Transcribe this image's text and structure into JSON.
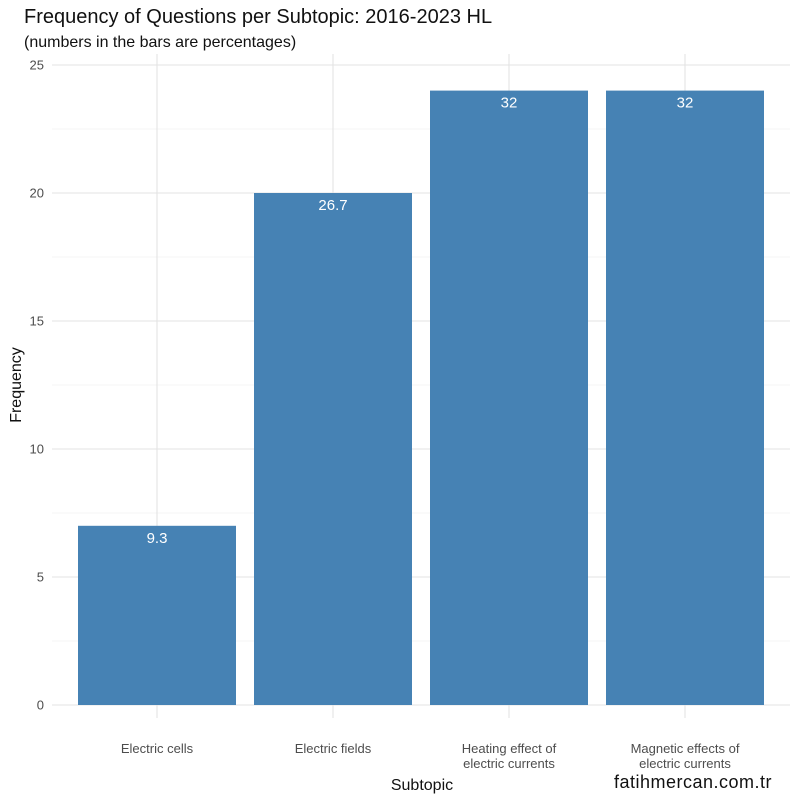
{
  "chart_data": {
    "type": "bar",
    "title": "Frequency of Questions per Subtopic: 2016-2023 HL",
    "subtitle": "(numbers in the bars are percentages)",
    "xlabel": "Subtopic",
    "ylabel": "Frequency",
    "categories": [
      [
        "Electric cells"
      ],
      [
        "Electric fields"
      ],
      [
        "Heating effect of",
        "electric currents"
      ],
      [
        "Magnetic effects of",
        "electric currents"
      ]
    ],
    "values": [
      7,
      20,
      24,
      24
    ],
    "bar_labels": [
      "9.3",
      "26.7",
      "32",
      "32"
    ],
    "ylim": [
      0,
      25
    ],
    "yticks": [
      0,
      5,
      10,
      15,
      20,
      25
    ],
    "grid": true,
    "bar_color": "#4682B4"
  },
  "watermark": "fatihmercan.com.tr"
}
